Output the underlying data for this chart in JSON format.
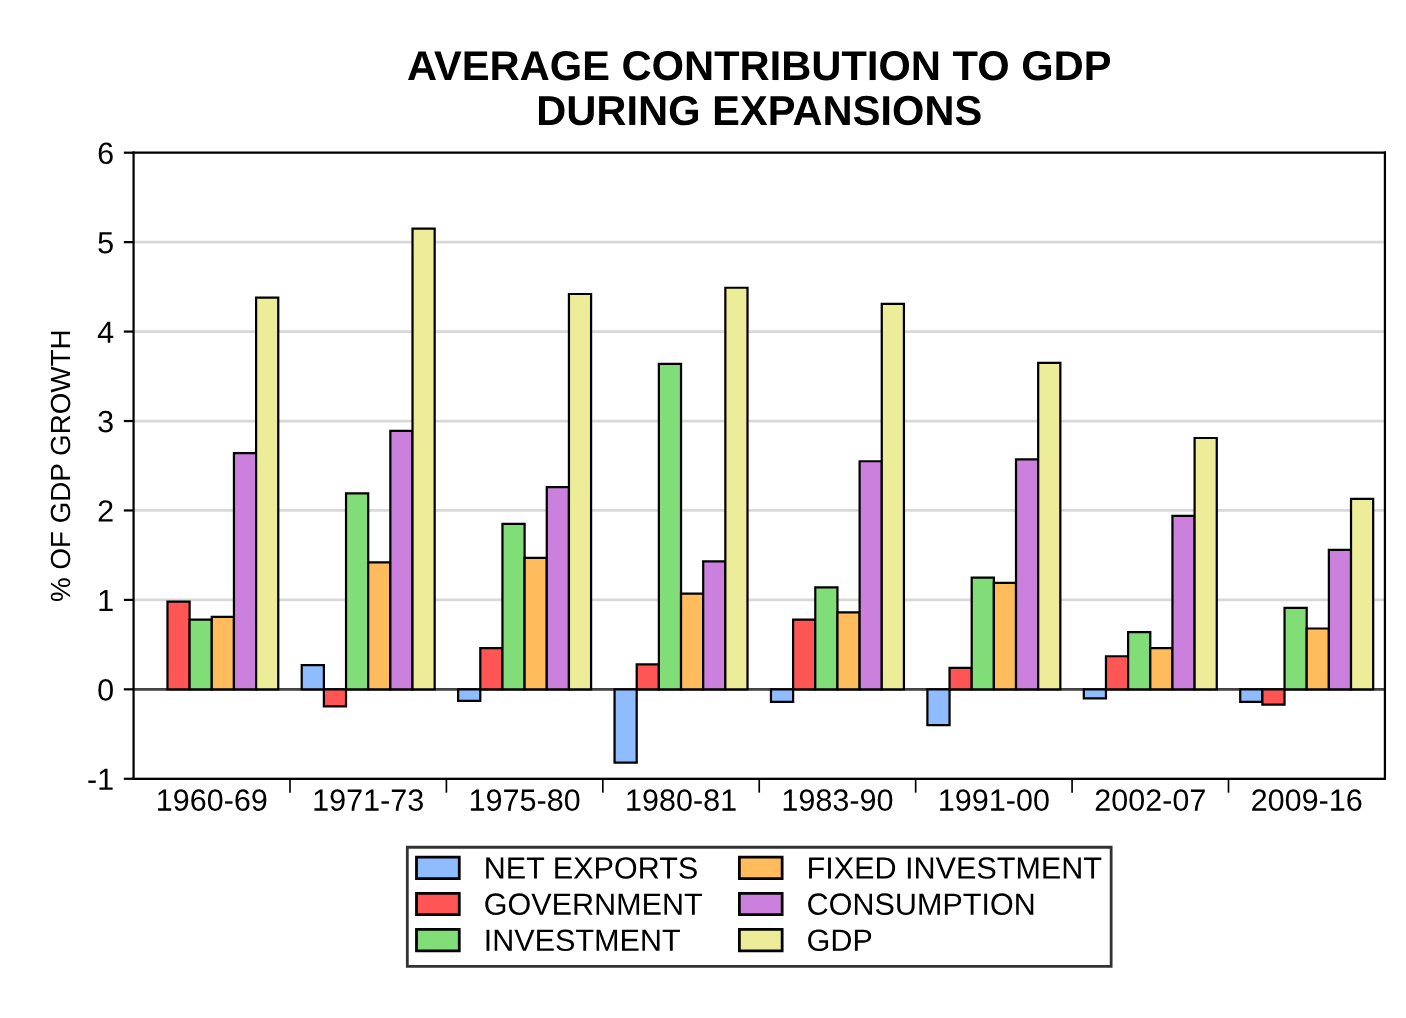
{
  "chart_data": {
    "type": "bar",
    "title": "AVERAGE CONTRIBUTION TO GDP\nDURING EXPANSIONS",
    "ylabel": "% OF GDP GROWTH",
    "categories": [
      "1960-69",
      "1971-73",
      "1975-80",
      "1980-81",
      "1983-90",
      "1991-00",
      "2002-07",
      "2009-16"
    ],
    "series": [
      {
        "name": "NET EXPORTS",
        "color": "#8fbbff",
        "values": [
          null,
          0.27,
          -0.13,
          -0.82,
          -0.14,
          -0.4,
          -0.1,
          -0.14
        ]
      },
      {
        "name": "GOVERNMENT",
        "color": "#ff5555",
        "values": [
          0.98,
          -0.19,
          0.46,
          0.28,
          0.78,
          0.24,
          0.37,
          -0.17
        ]
      },
      {
        "name": "INVESTMENT",
        "color": "#80dd77",
        "values": [
          0.78,
          2.19,
          1.85,
          3.64,
          1.14,
          1.25,
          0.64,
          0.91
        ]
      },
      {
        "name": "FIXED INVESTMENT",
        "color": "#ffbb5c",
        "values": [
          0.81,
          1.42,
          1.47,
          1.07,
          0.86,
          1.19,
          0.46,
          0.68
        ]
      },
      {
        "name": "CONSUMPTION",
        "color": "#cc80dd",
        "values": [
          2.64,
          2.89,
          2.26,
          1.43,
          2.55,
          2.57,
          1.94,
          1.56
        ]
      },
      {
        "name": "GDP",
        "color": "#ecec99",
        "values": [
          4.38,
          5.15,
          4.42,
          4.49,
          4.31,
          3.65,
          2.81,
          2.13
        ]
      }
    ],
    "ylim": [
      -1,
      6
    ],
    "yticks": [
      -1,
      0,
      1,
      2,
      3,
      4,
      5,
      6
    ],
    "grid": "y",
    "legend": "bottom"
  }
}
